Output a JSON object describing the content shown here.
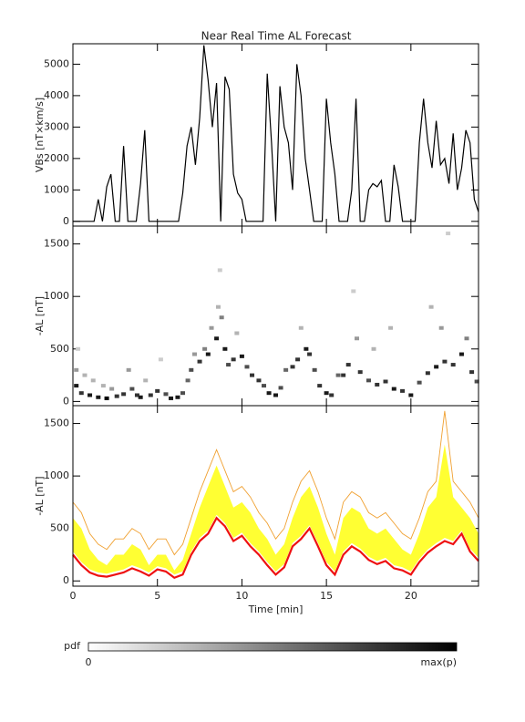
{
  "chart_data": [
    {
      "type": "line",
      "title": "Near Real Time AL Forecast",
      "ylabel": "VBs [nT×km/s]",
      "color": "#000000",
      "x": [
        0,
        0.25,
        0.5,
        0.75,
        1,
        1.25,
        1.5,
        1.75,
        2,
        2.25,
        2.5,
        2.75,
        3,
        3.25,
        3.5,
        3.75,
        4,
        4.25,
        4.5,
        4.75,
        5,
        5.25,
        5.5,
        5.75,
        6,
        6.25,
        6.5,
        6.75,
        7,
        7.25,
        7.5,
        7.75,
        8,
        8.25,
        8.5,
        8.75,
        9,
        9.25,
        9.5,
        9.75,
        10,
        10.25,
        10.5,
        10.75,
        11,
        11.25,
        11.5,
        11.75,
        12,
        12.25,
        12.5,
        12.75,
        13,
        13.25,
        13.5,
        13.75,
        14,
        14.25,
        14.5,
        14.75,
        15,
        15.25,
        15.5,
        15.75,
        16,
        16.25,
        16.5,
        16.75,
        17,
        17.25,
        17.5,
        17.75,
        18,
        18.25,
        18.5,
        18.75,
        19,
        19.25,
        19.5,
        19.75,
        20,
        20.25,
        20.5,
        20.75,
        21,
        21.25,
        21.5,
        21.75,
        22,
        22.25,
        22.5,
        22.75,
        23,
        23.25,
        23.5,
        23.75,
        24
      ],
      "values": [
        0,
        0,
        0,
        0,
        0,
        0,
        700,
        0,
        1100,
        1500,
        0,
        0,
        2400,
        0,
        0,
        0,
        1200,
        2900,
        0,
        0,
        0,
        0,
        0,
        0,
        0,
        0,
        900,
        2400,
        3000,
        1800,
        3300,
        5600,
        4500,
        3000,
        4400,
        0,
        4600,
        4200,
        1500,
        900,
        700,
        0,
        0,
        0,
        0,
        0,
        4700,
        2500,
        0,
        4300,
        3000,
        2500,
        1000,
        5000,
        4000,
        2000,
        1000,
        0,
        0,
        0,
        3900,
        2500,
        1500,
        0,
        0,
        0,
        1000,
        3900,
        0,
        0,
        1000,
        1200,
        1100,
        1300,
        0,
        0,
        1800,
        1100,
        0,
        0,
        0,
        0,
        2500,
        3900,
        2500,
        1700,
        3200,
        1800,
        2000,
        1200,
        2800,
        1000,
        1700,
        2900,
        2500,
        700,
        300
      ],
      "xlim": [
        0,
        24
      ],
      "xticks": [
        0,
        5,
        10,
        15,
        20
      ],
      "ylim": [
        -150,
        5650
      ],
      "yticks": [
        0,
        1000,
        2000,
        3000,
        4000,
        5000
      ]
    },
    {
      "type": "density",
      "ylabel": "-AL [nT]",
      "points": [
        [
          0.2,
          150,
          0.9
        ],
        [
          0.2,
          300,
          0.4
        ],
        [
          0.3,
          500,
          0.2
        ],
        [
          0.5,
          80,
          0.8
        ],
        [
          0.7,
          250,
          0.3
        ],
        [
          1,
          60,
          0.9
        ],
        [
          1.2,
          200,
          0.3
        ],
        [
          1.5,
          40,
          0.9
        ],
        [
          1.8,
          150,
          0.3
        ],
        [
          2,
          30,
          1
        ],
        [
          2.3,
          120,
          0.4
        ],
        [
          2.6,
          50,
          0.8
        ],
        [
          3,
          70,
          0.8
        ],
        [
          3.3,
          300,
          0.4
        ],
        [
          3.5,
          120,
          0.7
        ],
        [
          3.8,
          60,
          0.8
        ],
        [
          4,
          40,
          0.9
        ],
        [
          4.3,
          200,
          0.3
        ],
        [
          4.6,
          60,
          0.8
        ],
        [
          5,
          100,
          0.8
        ],
        [
          5.2,
          400,
          0.2
        ],
        [
          5.5,
          70,
          0.7
        ],
        [
          5.8,
          30,
          0.9
        ],
        [
          6.2,
          40,
          0.9
        ],
        [
          6.5,
          80,
          0.7
        ],
        [
          6.8,
          200,
          0.6
        ],
        [
          7,
          300,
          0.7
        ],
        [
          7.2,
          450,
          0.4
        ],
        [
          7.5,
          380,
          0.8
        ],
        [
          7.8,
          500,
          0.5
        ],
        [
          8,
          450,
          0.9
        ],
        [
          8.2,
          700,
          0.4
        ],
        [
          8.5,
          600,
          0.9
        ],
        [
          8.6,
          900,
          0.3
        ],
        [
          8.7,
          1250,
          0.2
        ],
        [
          8.8,
          800,
          0.5
        ],
        [
          9,
          500,
          0.9
        ],
        [
          9.2,
          350,
          0.7
        ],
        [
          9.5,
          400,
          0.8
        ],
        [
          9.7,
          650,
          0.3
        ],
        [
          10,
          430,
          0.9
        ],
        [
          10.3,
          330,
          0.7
        ],
        [
          10.6,
          250,
          0.8
        ],
        [
          11,
          200,
          0.8
        ],
        [
          11.3,
          150,
          0.7
        ],
        [
          11.6,
          80,
          0.9
        ],
        [
          12,
          60,
          0.9
        ],
        [
          12.3,
          130,
          0.7
        ],
        [
          12.6,
          300,
          0.6
        ],
        [
          13,
          330,
          0.8
        ],
        [
          13.3,
          400,
          0.8
        ],
        [
          13.5,
          700,
          0.3
        ],
        [
          13.8,
          500,
          0.9
        ],
        [
          14,
          450,
          0.8
        ],
        [
          14.3,
          300,
          0.7
        ],
        [
          14.6,
          150,
          0.8
        ],
        [
          15,
          80,
          0.9
        ],
        [
          15.3,
          60,
          0.8
        ],
        [
          15.7,
          250,
          0.6
        ],
        [
          16,
          250,
          0.8
        ],
        [
          16.3,
          350,
          0.8
        ],
        [
          16.6,
          1050,
          0.2
        ],
        [
          16.8,
          600,
          0.4
        ],
        [
          17,
          280,
          0.8
        ],
        [
          17.5,
          200,
          0.7
        ],
        [
          17.8,
          500,
          0.3
        ],
        [
          18,
          160,
          0.8
        ],
        [
          18.5,
          190,
          0.8
        ],
        [
          18.8,
          700,
          0.3
        ],
        [
          19,
          120,
          0.9
        ],
        [
          19.5,
          100,
          0.8
        ],
        [
          20,
          60,
          0.9
        ],
        [
          20.5,
          180,
          0.7
        ],
        [
          21,
          270,
          0.8
        ],
        [
          21.2,
          900,
          0.3
        ],
        [
          21.5,
          330,
          0.9
        ],
        [
          21.8,
          700,
          0.4
        ],
        [
          22,
          380,
          0.8
        ],
        [
          22.2,
          1600,
          0.2
        ],
        [
          22.5,
          350,
          0.8
        ],
        [
          23,
          450,
          0.9
        ],
        [
          23.3,
          600,
          0.5
        ],
        [
          23.6,
          280,
          0.8
        ],
        [
          23.9,
          190,
          0.7
        ]
      ],
      "xlim": [
        0,
        24
      ],
      "xticks": [
        0,
        5,
        10,
        15,
        20
      ],
      "ylim": [
        -40,
        1670
      ],
      "yticks": [
        0,
        500,
        1000,
        1500
      ]
    },
    {
      "type": "band",
      "ylabel": "-AL [nT]",
      "xlabel": "Time [min]",
      "x": [
        0,
        0.5,
        1,
        1.5,
        2,
        2.5,
        3,
        3.5,
        4,
        4.5,
        5,
        5.5,
        6,
        6.5,
        7,
        7.5,
        8,
        8.5,
        9,
        9.5,
        10,
        10.5,
        11,
        11.5,
        12,
        12.5,
        13,
        13.5,
        14,
        14.5,
        15,
        15.5,
        16,
        16.5,
        17,
        17.5,
        18,
        18.5,
        19,
        19.5,
        20,
        20.5,
        21,
        21.5,
        22,
        22.5,
        23,
        23.5,
        24
      ],
      "lower": [
        280,
        180,
        110,
        80,
        70,
        90,
        110,
        150,
        120,
        80,
        140,
        120,
        60,
        90,
        280,
        410,
        480,
        630,
        550,
        410,
        460,
        360,
        280,
        180,
        90,
        160,
        360,
        430,
        530,
        360,
        180,
        90,
        280,
        360,
        310,
        230,
        190,
        220,
        150,
        130,
        90,
        210,
        300,
        360,
        410,
        380,
        480,
        310,
        220
      ],
      "upper": [
        600,
        500,
        300,
        200,
        150,
        250,
        250,
        350,
        300,
        150,
        250,
        250,
        100,
        200,
        450,
        700,
        900,
        1100,
        900,
        700,
        750,
        650,
        500,
        400,
        250,
        350,
        600,
        800,
        900,
        700,
        450,
        250,
        600,
        700,
        650,
        500,
        450,
        500,
        400,
        300,
        250,
        450,
        700,
        800,
        1300,
        800,
        700,
        600,
        450
      ],
      "band_color": "#ffff33",
      "series": [
        {
          "color": "#f0a030",
          "values": [
            750,
            650,
            450,
            350,
            300,
            400,
            400,
            500,
            450,
            300,
            400,
            400,
            250,
            350,
            600,
            850,
            1050,
            1250,
            1050,
            850,
            900,
            800,
            650,
            550,
            400,
            500,
            750,
            950,
            1050,
            850,
            600,
            400,
            750,
            850,
            800,
            650,
            600,
            650,
            550,
            450,
            400,
            600,
            850,
            950,
            1620,
            950,
            850,
            750,
            600
          ]
        },
        {
          "color": "#ee1111",
          "values": [
            250,
            150,
            80,
            50,
            40,
            60,
            80,
            120,
            90,
            50,
            110,
            90,
            30,
            60,
            250,
            380,
            450,
            600,
            520,
            380,
            430,
            330,
            250,
            150,
            60,
            130,
            330,
            400,
            500,
            330,
            150,
            60,
            250,
            330,
            280,
            200,
            160,
            190,
            120,
            100,
            60,
            180,
            270,
            330,
            380,
            350,
            450,
            280,
            190
          ]
        }
      ],
      "xlim": [
        0,
        24
      ],
      "xticks": [
        0,
        5,
        10,
        15,
        20
      ],
      "ylim": [
        -50,
        1670
      ],
      "yticks": [
        0,
        500,
        1000,
        1500
      ]
    }
  ],
  "colorbar": {
    "label": "pdf",
    "min_label": "0",
    "max_label": "max(p)"
  }
}
